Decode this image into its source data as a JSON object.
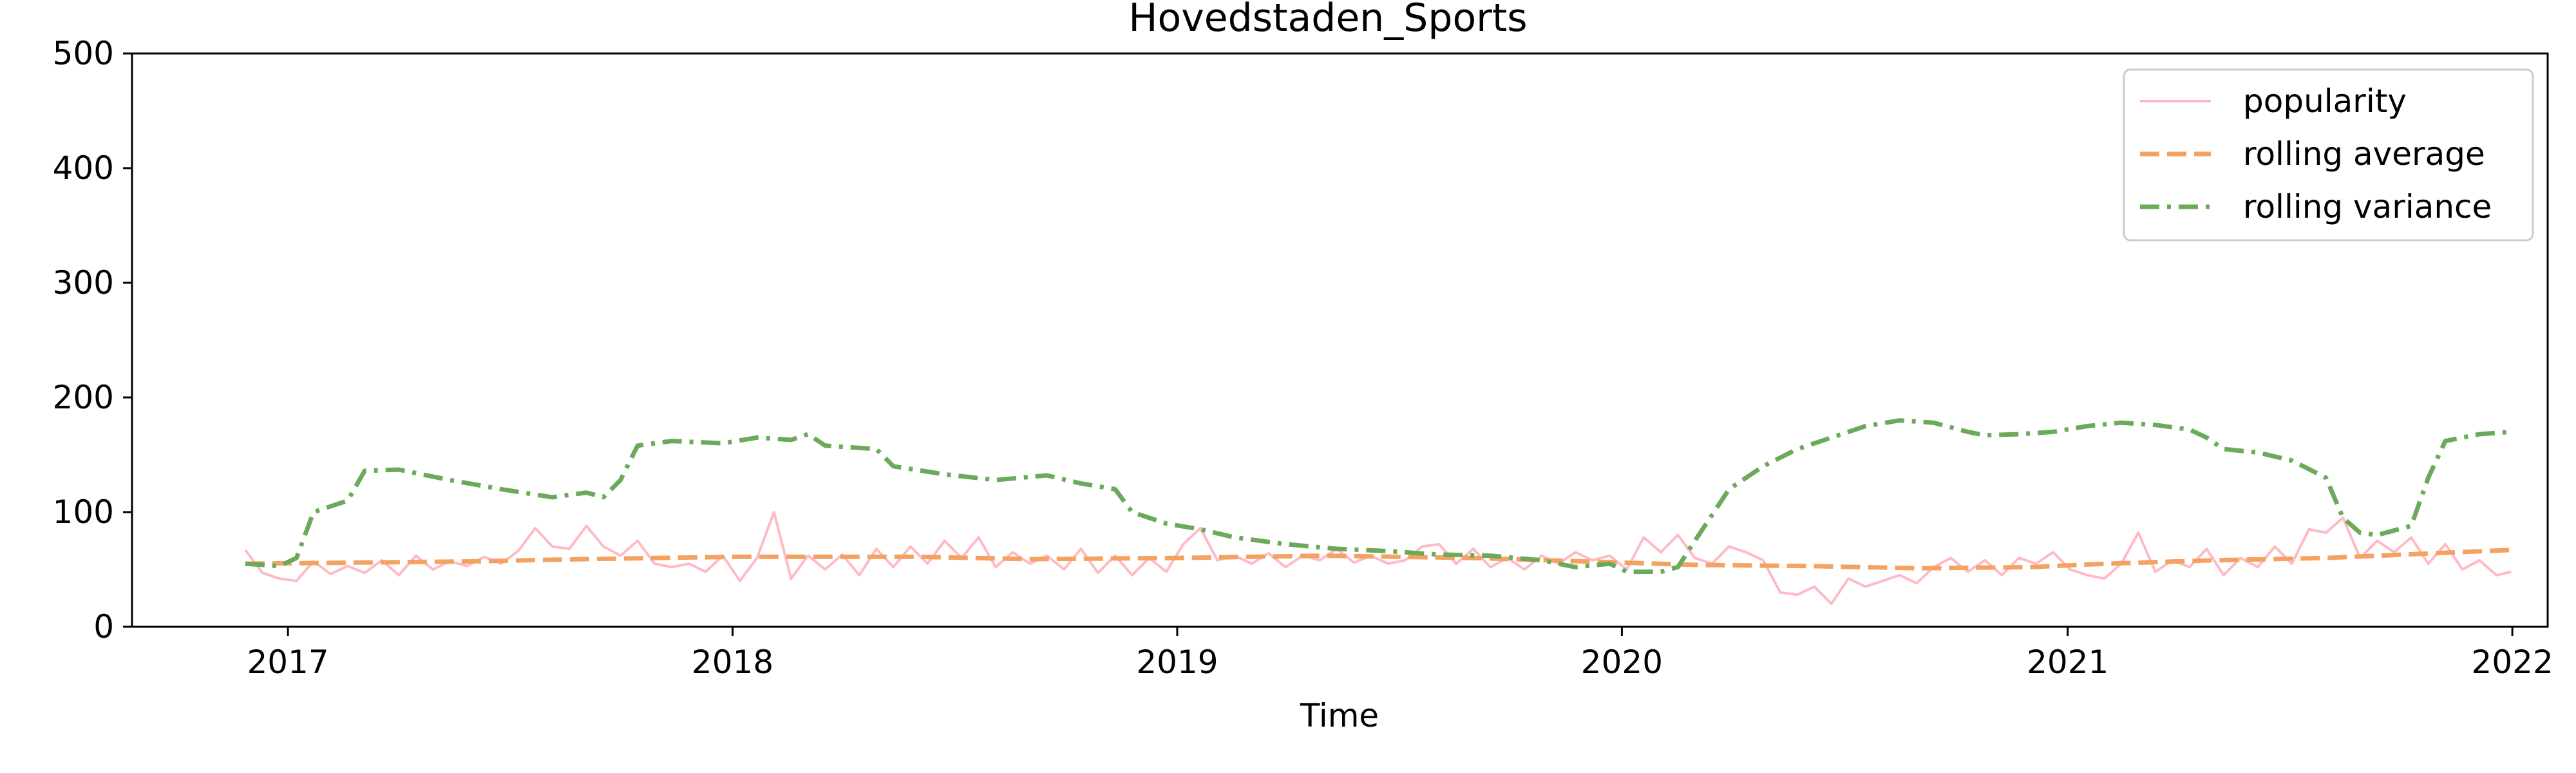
{
  "chart_data": {
    "type": "line",
    "title": "Hovedstaden_Sports",
    "xlabel": "Time",
    "ylabel": "",
    "ylim": [
      0,
      500
    ],
    "xlim": [
      "2016-08-26",
      "2022-01-30"
    ],
    "x_ticks": [
      "2017",
      "2018",
      "2019",
      "2020",
      "2021",
      "2022"
    ],
    "y_ticks": [
      "0",
      "100",
      "200",
      "300",
      "400",
      "500"
    ],
    "grid": false,
    "legend_position": "top-right",
    "series": [
      {
        "name": "popularity",
        "color": "#ffb6c1",
        "style": "solid",
        "points": [
          [
            "2016-11-27",
            67
          ],
          [
            "2016-12-11",
            47
          ],
          [
            "2016-12-25",
            42
          ],
          [
            "2017-01-08",
            40
          ],
          [
            "2017-01-22",
            57
          ],
          [
            "2017-02-05",
            46
          ],
          [
            "2017-02-19",
            53
          ],
          [
            "2017-03-05",
            47
          ],
          [
            "2017-03-19",
            58
          ],
          [
            "2017-04-02",
            45
          ],
          [
            "2017-04-16",
            62
          ],
          [
            "2017-04-30",
            50
          ],
          [
            "2017-05-14",
            57
          ],
          [
            "2017-05-28",
            53
          ],
          [
            "2017-06-11",
            61
          ],
          [
            "2017-06-25",
            55
          ],
          [
            "2017-07-09",
            66
          ],
          [
            "2017-07-23",
            86
          ],
          [
            "2017-08-06",
            70
          ],
          [
            "2017-08-20",
            68
          ],
          [
            "2017-09-03",
            88
          ],
          [
            "2017-09-17",
            70
          ],
          [
            "2017-10-01",
            62
          ],
          [
            "2017-10-15",
            75
          ],
          [
            "2017-10-29",
            55
          ],
          [
            "2017-11-12",
            52
          ],
          [
            "2017-11-26",
            55
          ],
          [
            "2017-12-10",
            48
          ],
          [
            "2017-12-24",
            62
          ],
          [
            "2018-01-07",
            40
          ],
          [
            "2018-01-21",
            60
          ],
          [
            "2018-02-04",
            100
          ],
          [
            "2018-02-18",
            42
          ],
          [
            "2018-03-04",
            62
          ],
          [
            "2018-03-18",
            50
          ],
          [
            "2018-04-01",
            63
          ],
          [
            "2018-04-15",
            45
          ],
          [
            "2018-04-29",
            68
          ],
          [
            "2018-05-13",
            52
          ],
          [
            "2018-05-27",
            70
          ],
          [
            "2018-06-10",
            55
          ],
          [
            "2018-06-24",
            75
          ],
          [
            "2018-07-08",
            60
          ],
          [
            "2018-07-22",
            78
          ],
          [
            "2018-08-05",
            52
          ],
          [
            "2018-08-19",
            65
          ],
          [
            "2018-09-02",
            55
          ],
          [
            "2018-09-16",
            62
          ],
          [
            "2018-09-30",
            50
          ],
          [
            "2018-10-14",
            68
          ],
          [
            "2018-10-28",
            47
          ],
          [
            "2018-11-11",
            62
          ],
          [
            "2018-11-25",
            45
          ],
          [
            "2018-12-09",
            60
          ],
          [
            "2018-12-23",
            48
          ],
          [
            "2019-01-06",
            72
          ],
          [
            "2019-01-20",
            86
          ],
          [
            "2019-02-03",
            58
          ],
          [
            "2019-02-17",
            62
          ],
          [
            "2019-03-03",
            55
          ],
          [
            "2019-03-17",
            64
          ],
          [
            "2019-03-31",
            52
          ],
          [
            "2019-04-14",
            62
          ],
          [
            "2019-04-28",
            58
          ],
          [
            "2019-05-12",
            68
          ],
          [
            "2019-05-26",
            56
          ],
          [
            "2019-06-09",
            62
          ],
          [
            "2019-06-23",
            55
          ],
          [
            "2019-07-07",
            58
          ],
          [
            "2019-07-21",
            70
          ],
          [
            "2019-08-04",
            72
          ],
          [
            "2019-08-18",
            55
          ],
          [
            "2019-09-01",
            68
          ],
          [
            "2019-09-15",
            52
          ],
          [
            "2019-09-29",
            60
          ],
          [
            "2019-10-13",
            50
          ],
          [
            "2019-10-27",
            62
          ],
          [
            "2019-11-10",
            55
          ],
          [
            "2019-11-24",
            65
          ],
          [
            "2019-12-08",
            58
          ],
          [
            "2019-12-22",
            62
          ],
          [
            "2020-01-05",
            50
          ],
          [
            "2020-01-19",
            78
          ],
          [
            "2020-02-02",
            65
          ],
          [
            "2020-02-16",
            80
          ],
          [
            "2020-03-01",
            60
          ],
          [
            "2020-03-15",
            55
          ],
          [
            "2020-03-29",
            70
          ],
          [
            "2020-04-12",
            65
          ],
          [
            "2020-04-26",
            58
          ],
          [
            "2020-05-10",
            30
          ],
          [
            "2020-05-24",
            28
          ],
          [
            "2020-06-07",
            35
          ],
          [
            "2020-06-21",
            20
          ],
          [
            "2020-07-05",
            42
          ],
          [
            "2020-07-19",
            35
          ],
          [
            "2020-08-02",
            40
          ],
          [
            "2020-08-16",
            45
          ],
          [
            "2020-08-30",
            38
          ],
          [
            "2020-09-13",
            52
          ],
          [
            "2020-09-27",
            60
          ],
          [
            "2020-10-11",
            48
          ],
          [
            "2020-10-25",
            58
          ],
          [
            "2020-11-08",
            45
          ],
          [
            "2020-11-22",
            60
          ],
          [
            "2020-12-06",
            55
          ],
          [
            "2020-12-20",
            65
          ],
          [
            "2021-01-03",
            50
          ],
          [
            "2021-01-17",
            45
          ],
          [
            "2021-01-31",
            42
          ],
          [
            "2021-02-14",
            55
          ],
          [
            "2021-02-28",
            82
          ],
          [
            "2021-03-14",
            48
          ],
          [
            "2021-03-28",
            58
          ],
          [
            "2021-04-11",
            52
          ],
          [
            "2021-04-25",
            68
          ],
          [
            "2021-05-09",
            45
          ],
          [
            "2021-05-23",
            60
          ],
          [
            "2021-06-06",
            52
          ],
          [
            "2021-06-20",
            70
          ],
          [
            "2021-07-04",
            55
          ],
          [
            "2021-07-18",
            85
          ],
          [
            "2021-08-01",
            82
          ],
          [
            "2021-08-15",
            95
          ],
          [
            "2021-08-29",
            60
          ],
          [
            "2021-09-12",
            75
          ],
          [
            "2021-09-26",
            65
          ],
          [
            "2021-10-10",
            78
          ],
          [
            "2021-10-24",
            55
          ],
          [
            "2021-11-07",
            72
          ],
          [
            "2021-11-21",
            50
          ],
          [
            "2021-12-05",
            58
          ],
          [
            "2021-12-19",
            45
          ],
          [
            "2021-12-31",
            48
          ]
        ]
      },
      {
        "name": "rolling average",
        "color": "#f4a261",
        "style": "dashed",
        "points": [
          [
            "2016-11-27",
            55
          ],
          [
            "2017-03-01",
            56
          ],
          [
            "2017-06-01",
            57
          ],
          [
            "2017-09-01",
            59
          ],
          [
            "2018-01-01",
            61
          ],
          [
            "2018-06-01",
            61
          ],
          [
            "2018-09-01",
            59
          ],
          [
            "2019-01-01",
            60
          ],
          [
            "2019-05-01",
            62
          ],
          [
            "2019-09-01",
            60
          ],
          [
            "2019-12-01",
            57
          ],
          [
            "2020-03-01",
            54
          ],
          [
            "2020-06-01",
            53
          ],
          [
            "2020-09-01",
            51
          ],
          [
            "2020-12-01",
            52
          ],
          [
            "2021-02-01",
            55
          ],
          [
            "2021-05-01",
            58
          ],
          [
            "2021-08-01",
            60
          ],
          [
            "2021-12-31",
            67
          ]
        ]
      },
      {
        "name": "rolling variance",
        "color": "#6aaa5a",
        "style": "dashdot",
        "points": [
          [
            "2016-11-27",
            55
          ],
          [
            "2016-12-25",
            53
          ],
          [
            "2017-01-08",
            60
          ],
          [
            "2017-01-22",
            100
          ],
          [
            "2017-02-19",
            110
          ],
          [
            "2017-03-05",
            136
          ],
          [
            "2017-04-02",
            137
          ],
          [
            "2017-05-14",
            128
          ],
          [
            "2017-06-25",
            120
          ],
          [
            "2017-08-06",
            113
          ],
          [
            "2017-09-03",
            117
          ],
          [
            "2017-09-17",
            113
          ],
          [
            "2017-10-01",
            128
          ],
          [
            "2017-10-15",
            158
          ],
          [
            "2017-11-12",
            162
          ],
          [
            "2017-12-24",
            160
          ],
          [
            "2018-01-21",
            165
          ],
          [
            "2018-02-18",
            163
          ],
          [
            "2018-03-04",
            168
          ],
          [
            "2018-03-18",
            158
          ],
          [
            "2018-04-29",
            155
          ],
          [
            "2018-05-13",
            140
          ],
          [
            "2018-06-24",
            133
          ],
          [
            "2018-08-05",
            128
          ],
          [
            "2018-09-16",
            132
          ],
          [
            "2018-10-14",
            125
          ],
          [
            "2018-11-11",
            120
          ],
          [
            "2018-11-25",
            100
          ],
          [
            "2018-12-23",
            90
          ],
          [
            "2019-01-20",
            85
          ],
          [
            "2019-02-17",
            78
          ],
          [
            "2019-03-31",
            72
          ],
          [
            "2019-05-12",
            68
          ],
          [
            "2019-06-23",
            66
          ],
          [
            "2019-08-04",
            63
          ],
          [
            "2019-09-15",
            62
          ],
          [
            "2019-10-27",
            58
          ],
          [
            "2019-11-24",
            52
          ],
          [
            "2019-12-22",
            55
          ],
          [
            "2020-01-05",
            48
          ],
          [
            "2020-02-02",
            48
          ],
          [
            "2020-02-16",
            52
          ],
          [
            "2020-03-01",
            75
          ],
          [
            "2020-03-29",
            120
          ],
          [
            "2020-04-26",
            140
          ],
          [
            "2020-05-24",
            155
          ],
          [
            "2020-06-21",
            165
          ],
          [
            "2020-07-19",
            175
          ],
          [
            "2020-08-16",
            180
          ],
          [
            "2020-09-13",
            178
          ],
          [
            "2020-10-11",
            170
          ],
          [
            "2020-10-25",
            167
          ],
          [
            "2020-11-22",
            168
          ],
          [
            "2020-12-20",
            170
          ],
          [
            "2021-01-17",
            175
          ],
          [
            "2021-02-14",
            178
          ],
          [
            "2021-03-14",
            176
          ],
          [
            "2021-04-11",
            172
          ],
          [
            "2021-04-25",
            165
          ],
          [
            "2021-05-09",
            155
          ],
          [
            "2021-06-06",
            152
          ],
          [
            "2021-07-04",
            145
          ],
          [
            "2021-08-01",
            130
          ],
          [
            "2021-08-15",
            95
          ],
          [
            "2021-08-29",
            82
          ],
          [
            "2021-09-12",
            80
          ],
          [
            "2021-10-10",
            88
          ],
          [
            "2021-10-24",
            130
          ],
          [
            "2021-11-07",
            162
          ],
          [
            "2021-12-05",
            168
          ],
          [
            "2021-12-31",
            170
          ]
        ]
      }
    ]
  }
}
